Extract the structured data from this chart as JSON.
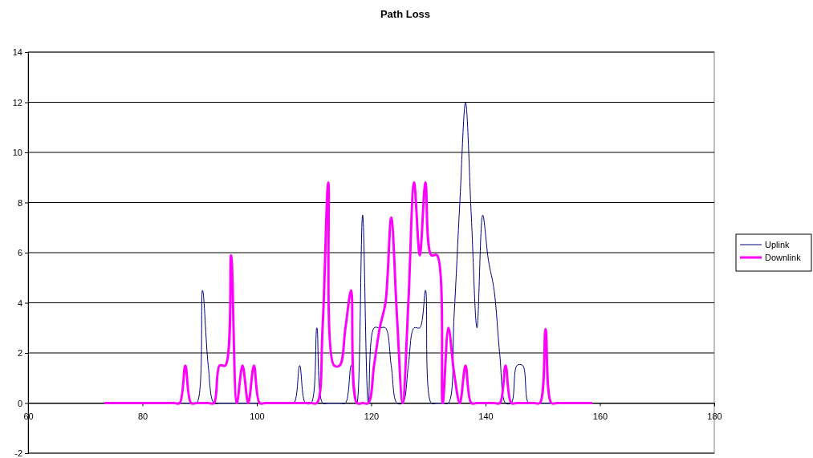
{
  "chart_data": {
    "type": "line",
    "title": "Path Loss",
    "x": [
      73.5,
      74.5,
      75.5,
      76.5,
      77.5,
      78.5,
      79.5,
      80.5,
      81.5,
      82.5,
      83.5,
      84.5,
      85.5,
      86.5,
      87.5,
      88.5,
      89.5,
      90.5,
      91.5,
      92.5,
      93.5,
      94.5,
      95.5,
      96.5,
      97.5,
      98.5,
      99.5,
      100.5,
      101.5,
      102.5,
      103.5,
      104.5,
      105.5,
      106.5,
      107.5,
      108.5,
      109.5,
      110.5,
      111.5,
      112.5,
      113.5,
      114.5,
      115.5,
      116.5,
      117.5,
      118.5,
      119.5,
      120.5,
      121.5,
      122.5,
      123.5,
      124.5,
      125.5,
      126.5,
      127.5,
      128.5,
      129.5,
      130.5,
      131.5,
      132.5,
      133.5,
      134.5,
      135.5,
      136.5,
      137.5,
      138.5,
      139.5,
      140.5,
      141.5,
      142.5,
      143.5,
      144.5,
      145.5,
      146.5,
      147.5,
      148.5,
      149.5,
      150.5,
      151.5,
      152.5,
      153.5,
      154.5,
      155.5,
      156.5,
      157.5,
      158.5
    ],
    "series": [
      {
        "name": "Uplink",
        "color": "#000080",
        "values": [
          null,
          null,
          null,
          null,
          null,
          null,
          null,
          null,
          null,
          null,
          null,
          null,
          0,
          0,
          0,
          0,
          0,
          4.5,
          1.5,
          0,
          0,
          0,
          0,
          0,
          0,
          0,
          0,
          0,
          0,
          0,
          0,
          0,
          0,
          0,
          1.5,
          0,
          0,
          3,
          0,
          0,
          0,
          0,
          0,
          1.5,
          0,
          7.5,
          0,
          3,
          3,
          3,
          1.5,
          0,
          0,
          1.5,
          3,
          3,
          4.5,
          0,
          0,
          0,
          0,
          3.5,
          8,
          12,
          7.5,
          3,
          7.5,
          5.7,
          4.5,
          1.9,
          0,
          0,
          1.5,
          1.5,
          0,
          0,
          0,
          0,
          0,
          0,
          null,
          null,
          null,
          null,
          null,
          null
        ]
      },
      {
        "name": "Downlink",
        "color": "#ff00ff",
        "values": [
          0,
          0,
          0,
          0,
          0,
          0,
          0,
          0,
          0,
          0,
          0,
          0,
          0,
          0,
          1.5,
          0,
          0,
          0,
          0,
          0,
          1.5,
          1.5,
          5.9,
          0,
          1.5,
          0,
          1.5,
          0,
          0,
          0,
          0,
          0,
          0,
          0,
          0,
          0,
          0,
          0,
          3,
          8.8,
          1.5,
          1.5,
          3,
          4.5,
          0,
          0,
          0,
          1.5,
          3,
          4,
          7.4,
          3.5,
          0,
          4,
          8.8,
          5.9,
          8.8,
          5.9,
          5.9,
          0,
          3,
          1.2,
          0,
          1.5,
          0,
          0,
          0,
          0,
          0,
          0,
          1.5,
          0,
          0,
          0,
          0,
          0,
          0,
          2.95,
          0,
          0,
          0,
          0,
          0,
          0,
          0,
          0
        ]
      }
    ],
    "xlim": [
      60,
      180
    ],
    "xticks": [
      60,
      80,
      100,
      120,
      140,
      160,
      180
    ],
    "ylim": [
      -2,
      14
    ],
    "yticks": [
      -2,
      0,
      2,
      4,
      6,
      8,
      10,
      12,
      14
    ],
    "grid": "y",
    "legend": "right",
    "marker": "none",
    "line_style": "solid"
  }
}
